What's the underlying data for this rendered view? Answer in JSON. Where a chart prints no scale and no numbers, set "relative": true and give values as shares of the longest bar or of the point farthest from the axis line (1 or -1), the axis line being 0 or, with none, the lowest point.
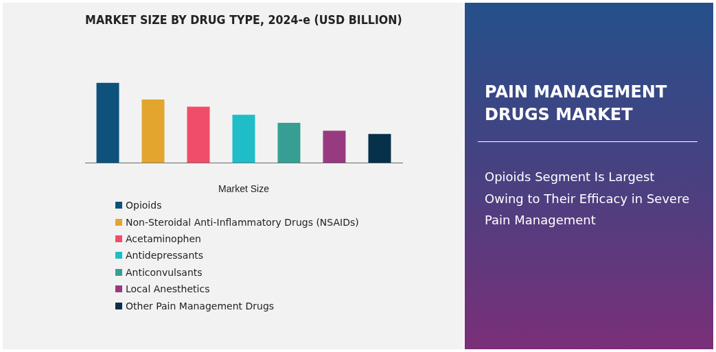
{
  "chart_data": {
    "type": "bar",
    "title": "MARKET SIZE BY DRUG TYPE, 2024-e (USD BILLION)",
    "xlabel": "Market Size",
    "relative": true,
    "stacked": true,
    "categories": [
      null,
      null,
      null,
      null,
      null,
      null,
      null
    ],
    "series": [
      {
        "name": "Opioids",
        "color": "#0e527c",
        "values": [
          1,
          null,
          null,
          null,
          null,
          null,
          null
        ]
      },
      {
        "name": "Non-Steroidal Anti-Inflammatory Drugs (NSAIDs)",
        "color": "#e3a52e",
        "values": [
          null,
          0.79,
          null,
          null,
          null,
          null,
          null
        ]
      },
      {
        "name": "Acetaminophen",
        "color": "#ef4d68",
        "values": [
          null,
          null,
          0.7,
          null,
          null,
          null,
          null
        ]
      },
      {
        "name": "Antidepressants",
        "color": "#1ebdc8",
        "values": [
          null,
          null,
          null,
          0.6,
          null,
          null,
          null
        ]
      },
      {
        "name": "Anticonvulsants",
        "color": "#379e93",
        "values": [
          null,
          null,
          null,
          null,
          0.5,
          null,
          null
        ]
      },
      {
        "name": "Local Anesthetics",
        "color": "#973a80",
        "values": [
          null,
          null,
          null,
          null,
          null,
          0.4,
          null
        ]
      },
      {
        "name": "Other Pain Management Drugs",
        "color": "#07304a",
        "values": [
          null,
          null,
          null,
          null,
          null,
          null,
          0.36
        ]
      }
    ],
    "legend": "bottom",
    "grid": false,
    "annotations": [
      "PAIN MANAGEMENT DRUGS MARKET",
      "Opioids Segment Is Largest Owing to Their Efficacy in Severe Pain Management"
    ]
  }
}
